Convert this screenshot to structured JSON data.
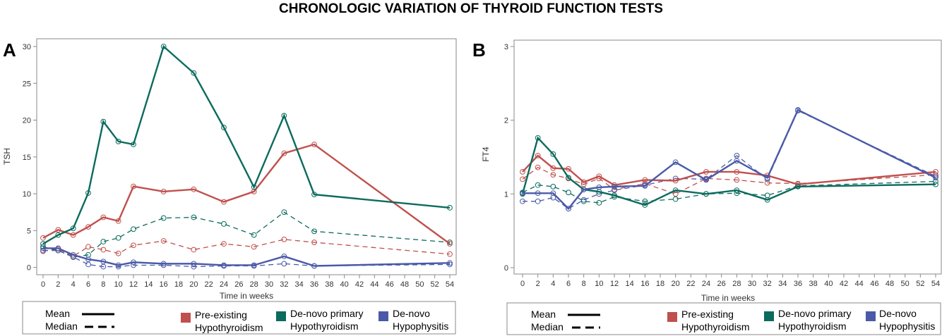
{
  "title": "CHRONOLOGIC VARIATION OF THYROID FUNCTION TESTS",
  "legend": {
    "mean_label": "Mean",
    "median_label": "Median",
    "groups": [
      {
        "line1": "Pre-existing",
        "line2": "Hypothyroidism",
        "color": "#c0504d"
      },
      {
        "line1": "De-novo primary",
        "line2": "Hypothyroidism",
        "color": "#0b6b5d"
      },
      {
        "line1": "De-novo",
        "line2": "Hypophysitis",
        "color": "#4a5aa8"
      }
    ]
  },
  "chart_data": [
    {
      "panel_label": "A",
      "type": "line",
      "xlabel": "Time in weeks",
      "ylabel": "TSH",
      "ylim": [
        0,
        30
      ],
      "yticks": [
        0,
        5,
        10,
        15,
        20,
        25,
        30
      ],
      "xlim": [
        0,
        54
      ],
      "xticks": [
        0,
        2,
        4,
        6,
        8,
        10,
        12,
        14,
        16,
        18,
        20,
        22,
        24,
        26,
        28,
        30,
        32,
        34,
        36,
        38,
        40,
        42,
        44,
        46,
        48,
        50,
        52,
        54
      ],
      "x": [
        0,
        2,
        4,
        6,
        8,
        10,
        12,
        16,
        20,
        24,
        28,
        32,
        36,
        54
      ],
      "series": [
        {
          "name": "Pre-existing Hypothyroidism Mean",
          "group": 0,
          "stat": "mean",
          "values": [
            4.0,
            5.1,
            4.4,
            5.5,
            6.8,
            6.3,
            11.0,
            10.3,
            10.6,
            8.9,
            10.3,
            15.5,
            16.7,
            3.2
          ]
        },
        {
          "name": "Pre-existing Hypothyroidism Median",
          "group": 0,
          "stat": "median",
          "values": [
            2.2,
            2.5,
            1.5,
            2.8,
            2.4,
            1.9,
            3.0,
            3.6,
            2.4,
            3.2,
            2.8,
            3.8,
            3.4,
            1.8
          ]
        },
        {
          "name": "De-novo primary Hypothyroidism Mean",
          "group": 1,
          "stat": "mean",
          "values": [
            3.2,
            4.4,
            5.3,
            10.1,
            19.8,
            17.1,
            16.7,
            30.0,
            26.4,
            19.0,
            10.9,
            20.6,
            9.9,
            8.1
          ]
        },
        {
          "name": "De-novo primary Hypothyroidism Median",
          "group": 1,
          "stat": "median",
          "values": [
            2.8,
            2.3,
            1.4,
            1.7,
            3.5,
            4.0,
            5.2,
            6.7,
            6.8,
            5.9,
            4.4,
            7.5,
            4.9,
            3.4
          ]
        },
        {
          "name": "De-novo Hypophysitis Mean",
          "group": 2,
          "stat": "mean",
          "values": [
            2.6,
            2.6,
            1.7,
            1.1,
            0.8,
            0.3,
            0.7,
            0.5,
            0.5,
            0.3,
            0.3,
            1.5,
            0.2,
            0.6
          ]
        },
        {
          "name": "De-novo Hypophysitis Median",
          "group": 2,
          "stat": "median",
          "values": [
            2.3,
            2.3,
            1.4,
            0.4,
            0.1,
            0.1,
            0.3,
            0.3,
            0.1,
            0.2,
            0.2,
            0.5,
            0.2,
            0.4
          ]
        }
      ]
    },
    {
      "panel_label": "B",
      "type": "line",
      "xlabel": "Time in weeks",
      "ylabel": "FT4",
      "ylim": [
        0,
        3
      ],
      "yticks": [
        0,
        1,
        2,
        3
      ],
      "xlim": [
        0,
        54
      ],
      "xticks": [
        0,
        2,
        4,
        6,
        8,
        10,
        12,
        14,
        16,
        18,
        20,
        22,
        24,
        26,
        28,
        30,
        32,
        34,
        36,
        38,
        40,
        42,
        44,
        46,
        48,
        50,
        52,
        54
      ],
      "x": [
        0,
        2,
        4,
        6,
        8,
        10,
        12,
        16,
        20,
        24,
        28,
        32,
        36,
        54
      ],
      "series": [
        {
          "name": "Pre-existing Hypothyroidism Mean",
          "group": 0,
          "stat": "mean",
          "values": [
            1.3,
            1.52,
            1.35,
            1.34,
            1.16,
            1.24,
            1.12,
            1.19,
            1.18,
            1.3,
            1.3,
            1.25,
            1.13,
            1.3
          ]
        },
        {
          "name": "Pre-existing Hypothyroidism Median",
          "group": 0,
          "stat": "median",
          "values": [
            1.2,
            1.36,
            1.26,
            1.21,
            1.13,
            1.21,
            1.06,
            1.14,
            1.0,
            1.21,
            1.19,
            1.15,
            1.14,
            1.26
          ]
        },
        {
          "name": "De-novo primary Hypothyroidism Mean",
          "group": 1,
          "stat": "mean",
          "values": [
            1.0,
            1.76,
            1.54,
            1.22,
            1.06,
            1.03,
            0.98,
            0.85,
            1.05,
            1.0,
            1.05,
            0.92,
            1.1,
            1.13
          ]
        },
        {
          "name": "De-novo primary Hypothyroidism Median",
          "group": 1,
          "stat": "median",
          "values": [
            1.02,
            1.12,
            1.1,
            1.02,
            0.9,
            0.88,
            0.96,
            0.9,
            0.93,
            1.0,
            1.01,
            0.98,
            1.11,
            1.17
          ]
        },
        {
          "name": "De-novo Hypophysitis Mean",
          "group": 2,
          "stat": "mean",
          "values": [
            1.01,
            1.01,
            1.01,
            0.8,
            1.06,
            1.09,
            1.1,
            1.11,
            1.43,
            1.19,
            1.45,
            1.22,
            2.14,
            1.22
          ]
        },
        {
          "name": "De-novo Hypophysitis Median",
          "group": 2,
          "stat": "median",
          "values": [
            0.9,
            0.9,
            0.95,
            0.8,
            0.92,
            1.0,
            1.05,
            1.12,
            1.21,
            1.2,
            1.52,
            1.2,
            2.13,
            1.24
          ]
        }
      ]
    }
  ]
}
